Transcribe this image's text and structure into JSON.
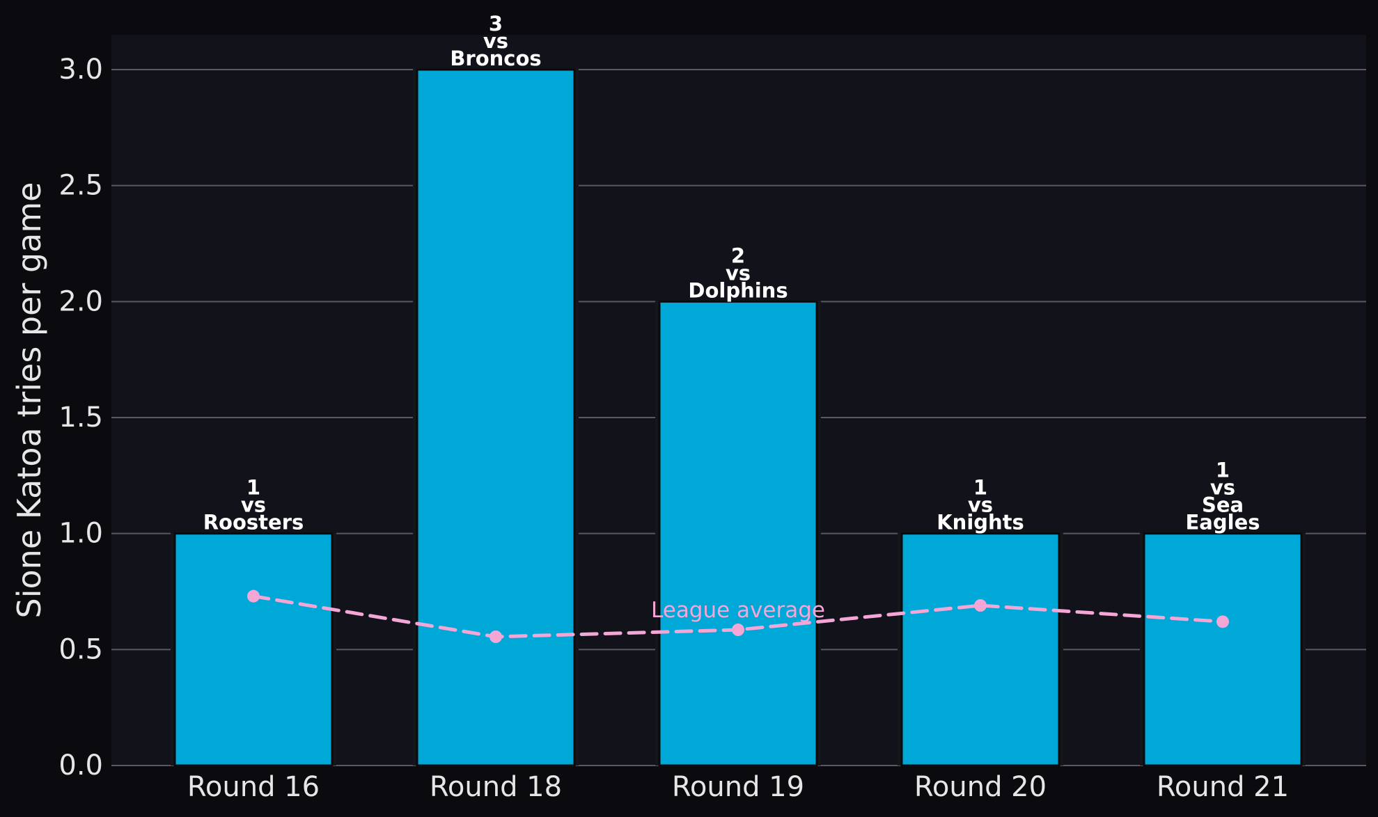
{
  "chart_data": {
    "type": "bar",
    "categories": [
      "Round 16",
      "Round 18",
      "Round 19",
      "Round 20",
      "Round 21"
    ],
    "values": [
      1,
      3,
      2,
      1,
      1
    ],
    "bar_labels": [
      [
        "1",
        "vs",
        "Roosters"
      ],
      [
        "3",
        "vs",
        "Broncos"
      ],
      [
        "2",
        "vs",
        "Dolphins"
      ],
      [
        "1",
        "vs",
        "Knights"
      ],
      [
        "1",
        "vs",
        "Sea",
        "Eagles"
      ]
    ],
    "overlay_line": {
      "type": "line",
      "style": "dashed",
      "values": [
        0.73,
        0.555,
        0.585,
        0.69,
        0.62
      ],
      "annotation": "League average"
    },
    "xlabel": "",
    "ylabel": "Sione Katoa tries per game",
    "ylim": [
      0,
      3.15
    ],
    "yticks": [
      "0.0",
      "0.5",
      "1.0",
      "1.5",
      "2.0",
      "2.5",
      "3.0"
    ],
    "grid": "horizontal",
    "colors": {
      "background": "#0b0b0f",
      "plot_background": "#12131a",
      "bar": "#00a8d8",
      "line": "#f4a6d7",
      "grid": "#5a5a60"
    }
  }
}
